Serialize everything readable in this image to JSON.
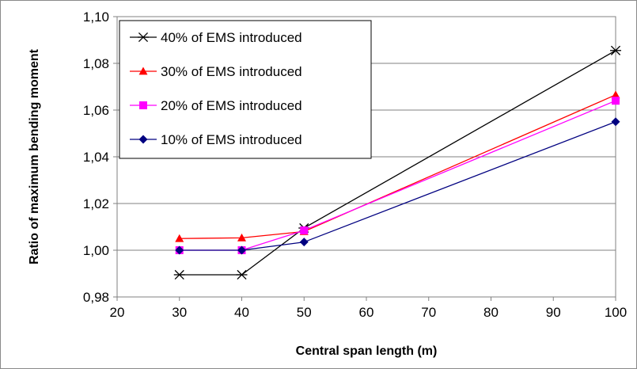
{
  "chart_data": {
    "type": "line",
    "title": "",
    "xlabel": "Central span length (m)",
    "ylabel": "Ratio of maximum bending moment",
    "xlim": [
      20,
      100
    ],
    "ylim": [
      0.98,
      1.1
    ],
    "x_ticks": [
      "20",
      "30",
      "40",
      "50",
      "60",
      "70",
      "80",
      "90",
      "100"
    ],
    "x_tick_values": [
      20,
      30,
      40,
      50,
      60,
      70,
      80,
      90,
      100
    ],
    "y_ticks": [
      "0,98",
      "1,00",
      "1,02",
      "1,04",
      "1,06",
      "1,08",
      "1,10"
    ],
    "y_tick_values": [
      0.98,
      1.0,
      1.02,
      1.04,
      1.06,
      1.08,
      1.1
    ],
    "grid": "horizontal",
    "legend_position": "top-left",
    "series": [
      {
        "name": "40% of EMS introduced",
        "color": "#000000",
        "marker": "asterisk",
        "x": [
          30,
          40,
          50,
          100
        ],
        "y": [
          0.9895,
          0.9895,
          1.0095,
          1.0855
        ]
      },
      {
        "name": "30% of EMS introduced",
        "color": "#ff0000",
        "marker": "triangle",
        "x": [
          30,
          40,
          50,
          100
        ],
        "y": [
          1.005,
          1.0053,
          1.008,
          1.0665
        ]
      },
      {
        "name": "20% of EMS introduced",
        "color": "#ff00ff",
        "marker": "square",
        "x": [
          30,
          40,
          50,
          100
        ],
        "y": [
          1.0,
          1.0,
          1.0085,
          1.064
        ]
      },
      {
        "name": "10% of EMS introduced",
        "color": "#000080",
        "marker": "diamond",
        "x": [
          30,
          40,
          50,
          100
        ],
        "y": [
          1.0,
          1.0,
          1.0035,
          1.055
        ]
      }
    ]
  }
}
